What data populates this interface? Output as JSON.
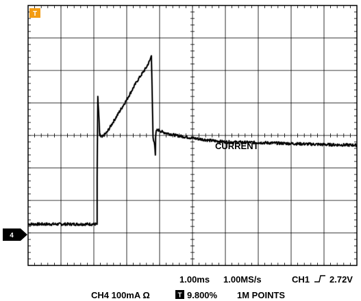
{
  "chart_data": {
    "type": "line",
    "title": "",
    "xlabel": "",
    "ylabel": "",
    "grid": true,
    "x_divisions": 10,
    "y_divisions": 8,
    "x_unit": "ms",
    "x_per_division": 1.0,
    "xlim": [
      0,
      10
    ],
    "ylim": [
      0,
      8
    ],
    "series": [
      {
        "name": "CURRENT",
        "channel": "4",
        "color": "#000000",
        "x": [
          0.0,
          2.1,
          2.1,
          2.1,
          2.12,
          2.18,
          2.25,
          2.4,
          2.7,
          3.0,
          3.3,
          3.4,
          3.6,
          3.7,
          3.75,
          3.77,
          3.8,
          3.85,
          3.87,
          3.88,
          3.9,
          3.95,
          4.0,
          4.1,
          4.5,
          5.0,
          5.5,
          6.0,
          7.0,
          8.0,
          9.0,
          10.0
        ],
        "y": [
          1.27,
          1.27,
          1.4,
          2.7,
          5.2,
          4.0,
          3.95,
          4.1,
          4.6,
          5.1,
          5.65,
          5.8,
          6.1,
          6.3,
          6.45,
          5.5,
          3.95,
          3.7,
          3.4,
          3.95,
          4.15,
          4.17,
          4.15,
          4.1,
          4.0,
          3.92,
          3.85,
          3.8,
          3.78,
          3.75,
          3.72,
          3.7
        ]
      }
    ],
    "trigger_marker": "T",
    "channel_marker": "4",
    "readouts": {
      "timebase": "1.00ms",
      "sample_rate": "1.00MS/s",
      "trigger_source": "CH1",
      "trigger_level": "2.72V",
      "channel_scale": "CH4  100mA Ω",
      "trigger_position": "9.800%",
      "record_length": "1M POINTS"
    }
  }
}
